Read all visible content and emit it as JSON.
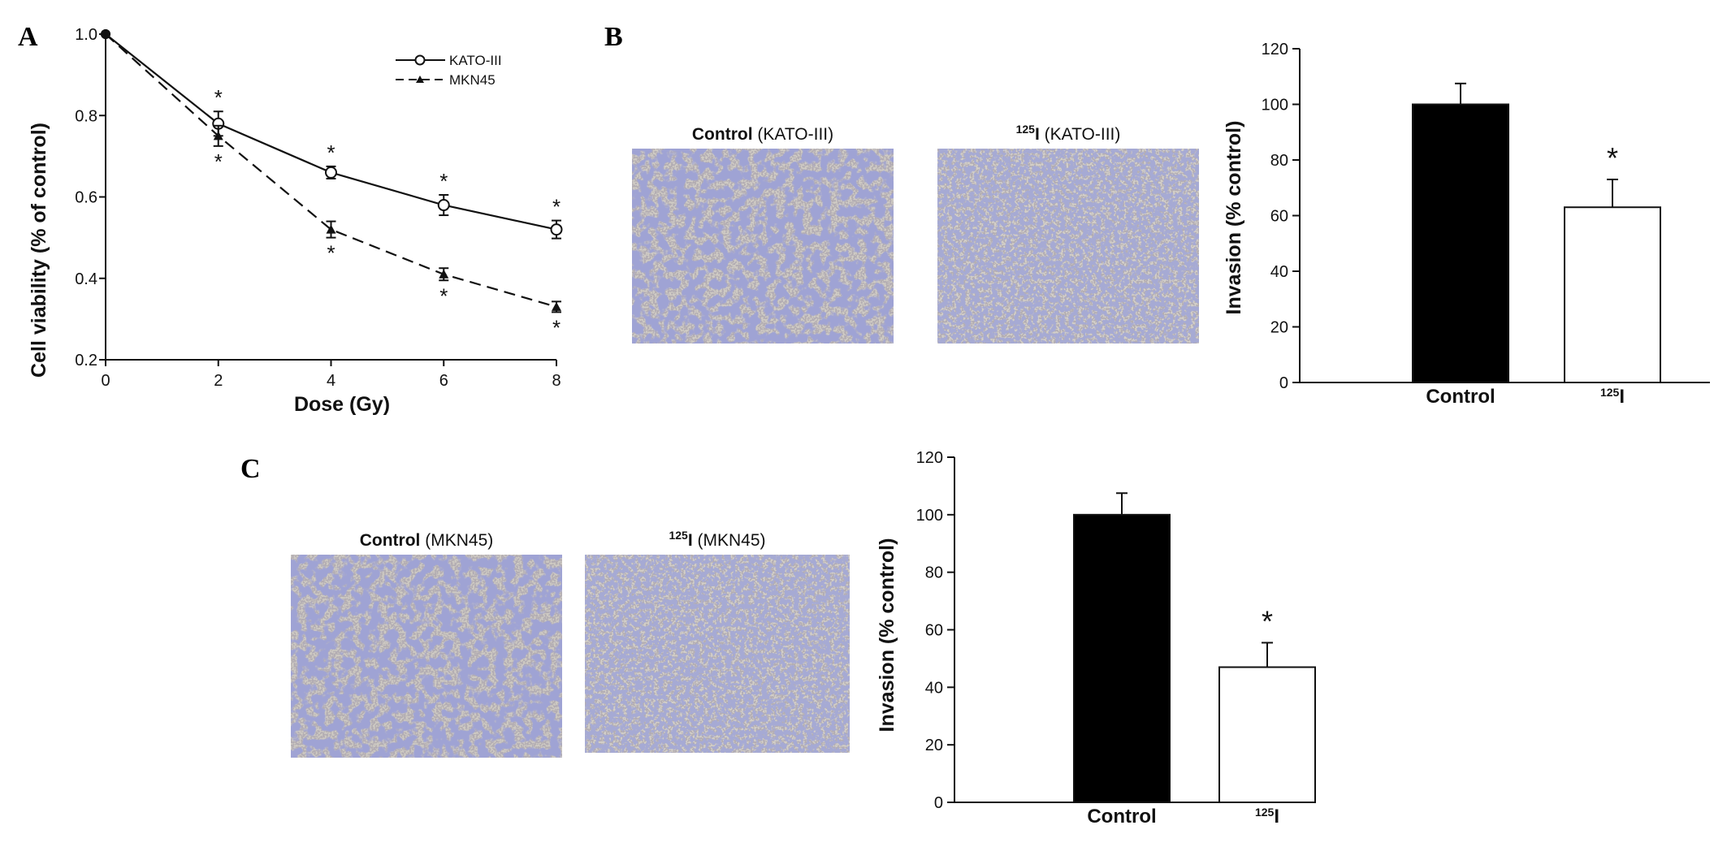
{
  "panel_labels": {
    "a": "A",
    "b": "B",
    "c": "C"
  },
  "colors": {
    "ink": "#111111",
    "bar_control": "#000000",
    "bar_treated": "#ffffff",
    "stain": "#5a5fa8",
    "background_field": "#cfcbc4"
  },
  "chart_data": [
    {
      "id": "A",
      "type": "line",
      "xlabel": "Dose (Gy)",
      "ylabel": "Cell viability (% of control)",
      "xlim": [
        0,
        8
      ],
      "ylim": [
        0.2,
        1.0
      ],
      "xticks": [
        0,
        2,
        4,
        6,
        8
      ],
      "yticks": [
        "0.2",
        "0.4",
        "0.6",
        "0.8",
        "1.0"
      ],
      "legend_position": "top-right",
      "series": [
        {
          "name": "KATO-III",
          "style": "solid",
          "marker": "open-circle",
          "x": [
            0,
            2,
            4,
            6,
            8
          ],
          "y": [
            1.0,
            0.78,
            0.66,
            0.58,
            0.52
          ],
          "err": [
            0,
            0.03,
            0.015,
            0.025,
            0.022
          ],
          "significance": [
            "",
            "*",
            "*",
            "*",
            "*"
          ]
        },
        {
          "name": "MKN45",
          "style": "dashed",
          "marker": "filled-triangle",
          "x": [
            0,
            2,
            4,
            6,
            8
          ],
          "y": [
            1.0,
            0.75,
            0.52,
            0.41,
            0.33
          ],
          "err": [
            0,
            0.025,
            0.02,
            0.015,
            0.013
          ],
          "significance": [
            "",
            "*",
            "*",
            "*",
            "*"
          ]
        }
      ]
    },
    {
      "id": "B",
      "type": "bar",
      "ylabel": "Invasion (% control)",
      "categories": [
        {
          "main": "Control",
          "sup": ""
        },
        {
          "main": "I",
          "sup": "125"
        }
      ],
      "values": [
        100,
        63
      ],
      "err": [
        7.5,
        10
      ],
      "significance": [
        "",
        "*"
      ],
      "ylim": [
        0,
        120
      ],
      "yticks": [
        "0",
        "20",
        "40",
        "60",
        "80",
        "100",
        "120"
      ]
    },
    {
      "id": "C",
      "type": "bar",
      "ylabel": "Invasion (% control)",
      "categories": [
        {
          "main": "Control",
          "sup": ""
        },
        {
          "main": "I",
          "sup": "125"
        }
      ],
      "values": [
        100,
        47
      ],
      "err": [
        7.5,
        8.5
      ],
      "significance": [
        "",
        "*"
      ],
      "ylim": [
        0,
        120
      ],
      "yticks": [
        "0",
        "20",
        "40",
        "60",
        "80",
        "100",
        "120"
      ]
    }
  ],
  "micrographs": {
    "b_control": {
      "bold": "Control",
      "rest": " (KATO-III)"
    },
    "b_treated": {
      "sup": "125",
      "bold": "I",
      "rest": " (KATO-III)"
    },
    "c_control": {
      "bold": "Control",
      "rest": " (MKN45)"
    },
    "c_treated": {
      "sup": "125",
      "bold": "I",
      "rest": " (MKN45)"
    }
  }
}
